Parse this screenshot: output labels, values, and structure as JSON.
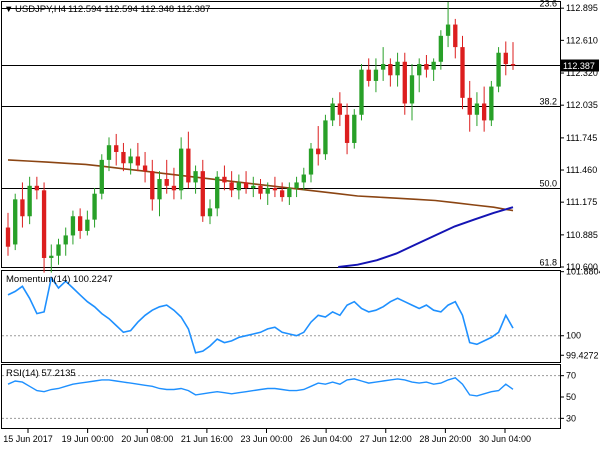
{
  "chart_data": [
    {
      "type": "candlestick",
      "title": "USDJPY,H4",
      "ohlc_readout": [
        "112.594",
        "112.594",
        "112.348",
        "112.387"
      ],
      "last_price": 112.387,
      "ylim": [
        110.6,
        112.95
      ],
      "y_ticks": [
        "112.895",
        "112.610",
        "112.320",
        "112.035",
        "111.745",
        "111.460",
        "111.175",
        "110.885",
        "110.600"
      ],
      "x_ticks": [
        "15 Jun 2017",
        "19 Jun 00:00",
        "20 Jun 08:00",
        "21 Jun 16:00",
        "23 Jun 00:00",
        "26 Jun 04:00",
        "27 Jun 12:00",
        "28 Jun 20:00",
        "30 Jun 04:00"
      ],
      "fibo_levels": [
        {
          "label": "23.6",
          "value": 112.895
        },
        {
          "label": "38.2",
          "value": 112.03
        },
        {
          "label": "50.0",
          "value": 111.3
        },
        {
          "label": "61.8",
          "value": 110.6
        }
      ],
      "current_price_line": 112.387,
      "candles": [
        [
          110.95,
          111.08,
          110.7,
          110.78
        ],
        [
          110.8,
          111.25,
          110.75,
          111.2
        ],
        [
          111.2,
          111.35,
          110.95,
          111.05
        ],
        [
          111.05,
          111.4,
          110.98,
          111.32
        ],
        [
          111.32,
          111.4,
          111.2,
          111.28
        ],
        [
          111.28,
          111.35,
          110.55,
          110.68
        ],
        [
          110.68,
          110.8,
          110.55,
          110.7
        ],
        [
          110.7,
          110.85,
          110.62,
          110.8
        ],
        [
          110.8,
          110.95,
          110.7,
          110.88
        ],
        [
          110.88,
          111.1,
          110.8,
          111.05
        ],
        [
          111.05,
          111.12,
          110.85,
          110.92
        ],
        [
          110.92,
          111.1,
          110.88,
          111.02
        ],
        [
          111.02,
          111.3,
          110.95,
          111.25
        ],
        [
          111.25,
          111.6,
          111.2,
          111.55
        ],
        [
          111.55,
          111.75,
          111.45,
          111.68
        ],
        [
          111.68,
          111.78,
          111.5,
          111.62
        ],
        [
          111.62,
          111.7,
          111.45,
          111.52
        ],
        [
          111.52,
          111.65,
          111.42,
          111.58
        ],
        [
          111.58,
          111.7,
          111.45,
          111.5
        ],
        [
          111.5,
          111.62,
          111.35,
          111.45
        ],
        [
          111.45,
          111.55,
          111.1,
          111.2
        ],
        [
          111.2,
          111.45,
          111.05,
          111.38
        ],
        [
          111.38,
          111.55,
          111.25,
          111.32
        ],
        [
          111.32,
          111.48,
          111.2,
          111.28
        ],
        [
          111.28,
          111.75,
          111.2,
          111.65
        ],
        [
          111.65,
          111.8,
          111.3,
          111.35
        ],
        [
          111.35,
          111.5,
          111.25,
          111.45
        ],
        [
          111.45,
          111.55,
          111.0,
          111.05
        ],
        [
          111.05,
          111.2,
          110.98,
          111.12
        ],
        [
          111.12,
          111.45,
          111.05,
          111.4
        ],
        [
          111.4,
          111.5,
          111.28,
          111.35
        ],
        [
          111.35,
          111.45,
          111.22,
          111.28
        ],
        [
          111.28,
          111.42,
          111.2,
          111.35
        ],
        [
          111.35,
          111.45,
          111.25,
          111.3
        ],
        [
          111.3,
          111.4,
          111.22,
          111.32
        ],
        [
          111.32,
          111.38,
          111.2,
          111.25
        ],
        [
          111.25,
          111.35,
          111.15,
          111.3
        ],
        [
          111.3,
          111.4,
          111.22,
          111.28
        ],
        [
          111.28,
          111.35,
          111.18,
          111.22
        ],
        [
          111.22,
          111.35,
          111.15,
          111.3
        ],
        [
          111.3,
          111.4,
          111.22,
          111.35
        ],
        [
          111.35,
          111.48,
          111.28,
          111.42
        ],
        [
          111.42,
          111.7,
          111.35,
          111.65
        ],
        [
          111.65,
          111.85,
          111.5,
          111.6
        ],
        [
          111.6,
          111.95,
          111.55,
          111.9
        ],
        [
          111.9,
          112.1,
          111.85,
          112.05
        ],
        [
          112.05,
          112.15,
          111.85,
          111.95
        ],
        [
          111.95,
          112.05,
          111.6,
          111.7
        ],
        [
          111.7,
          112.0,
          111.65,
          111.95
        ],
        [
          111.95,
          112.4,
          111.9,
          112.35
        ],
        [
          112.35,
          112.45,
          112.2,
          112.25
        ],
        [
          112.25,
          112.45,
          112.15,
          112.35
        ],
        [
          112.35,
          112.55,
          112.25,
          112.4
        ],
        [
          112.4,
          112.45,
          112.2,
          112.3
        ],
        [
          112.3,
          112.5,
          112.2,
          112.42
        ],
        [
          112.42,
          112.5,
          111.95,
          112.05
        ],
        [
          112.05,
          112.4,
          111.9,
          112.3
        ],
        [
          112.3,
          112.45,
          112.15,
          112.4
        ],
        [
          112.4,
          112.48,
          112.28,
          112.35
        ],
        [
          112.35,
          112.45,
          112.25,
          112.42
        ],
        [
          112.42,
          112.7,
          112.35,
          112.65
        ],
        [
          112.65,
          112.95,
          112.55,
          112.75
        ],
        [
          112.75,
          112.8,
          112.45,
          112.55
        ],
        [
          112.55,
          112.65,
          112.0,
          112.1
        ],
        [
          112.1,
          112.25,
          111.8,
          111.95
        ],
        [
          111.95,
          112.15,
          111.85,
          112.05
        ],
        [
          112.05,
          112.2,
          111.8,
          111.9
        ],
        [
          111.9,
          112.25,
          111.85,
          112.2
        ],
        [
          112.2,
          112.55,
          112.15,
          112.5
        ],
        [
          112.5,
          112.6,
          112.3,
          112.4
        ],
        [
          112.4,
          112.594,
          112.348,
          112.387
        ]
      ],
      "moving_averages": [
        {
          "color": "#8b4513",
          "values": [
            111.55,
            111.54,
            111.53,
            111.52,
            111.51,
            111.49,
            111.47,
            111.45,
            111.43,
            111.41,
            111.39,
            111.37,
            111.35,
            111.33,
            111.31,
            111.29,
            111.27,
            111.25,
            111.23,
            111.22,
            111.21,
            111.2,
            111.19,
            111.17,
            111.15,
            111.13,
            111.1
          ]
        },
        {
          "color": "#1414b4",
          "values": [
            null,
            null,
            null,
            null,
            null,
            null,
            null,
            null,
            null,
            null,
            null,
            null,
            null,
            null,
            null,
            null,
            null,
            110.6,
            110.62,
            110.66,
            110.72,
            110.8,
            110.88,
            110.96,
            111.02,
            111.08,
            111.13
          ]
        }
      ]
    },
    {
      "type": "line",
      "title": "Momentum(14) 100.2247",
      "ylim": [
        99.2,
        101.9
      ],
      "y_ticks": [
        "101.8804",
        "100",
        "99.4272"
      ],
      "reference_line": 100,
      "color": "#1e90ff",
      "values": [
        101.2,
        101.3,
        101.45,
        101.1,
        100.65,
        100.7,
        101.7,
        101.4,
        101.6,
        101.4,
        101.2,
        101.0,
        100.85,
        100.65,
        100.5,
        100.3,
        100.1,
        100.15,
        100.4,
        100.6,
        100.75,
        100.85,
        100.9,
        100.75,
        100.55,
        100.2,
        99.5,
        99.55,
        99.7,
        99.9,
        99.8,
        99.85,
        99.95,
        100.0,
        100.05,
        100.1,
        100.2,
        100.25,
        100.1,
        100.05,
        100.0,
        100.1,
        100.4,
        100.6,
        100.55,
        100.7,
        100.6,
        100.9,
        101.0,
        100.8,
        100.7,
        100.75,
        100.85,
        101.0,
        101.1,
        101.0,
        100.9,
        100.8,
        100.9,
        100.75,
        100.7,
        100.9,
        101.0,
        100.6,
        99.8,
        99.75,
        99.85,
        99.95,
        100.1,
        100.6,
        100.2247
      ]
    },
    {
      "type": "line",
      "title": "RSI(14) 57.2135",
      "ylim": [
        20,
        80
      ],
      "y_ticks": [
        "70",
        "50",
        "30"
      ],
      "reference_lines": [
        70,
        30
      ],
      "color": "#1e90ff",
      "values": [
        62,
        65,
        64,
        60,
        56,
        55,
        57,
        58,
        60,
        62,
        63,
        64,
        65,
        66,
        66,
        65,
        64,
        63,
        62,
        61,
        60,
        58,
        57,
        57,
        58,
        56,
        52,
        53,
        54,
        55,
        54,
        53,
        54,
        55,
        56,
        57,
        58,
        58,
        57,
        56,
        56,
        57,
        60,
        63,
        62,
        64,
        62,
        66,
        67,
        65,
        63,
        64,
        65,
        66,
        67,
        66,
        64,
        63,
        64,
        62,
        63,
        66,
        68,
        62,
        52,
        51,
        53,
        55,
        56,
        62,
        57.2135
      ]
    }
  ]
}
